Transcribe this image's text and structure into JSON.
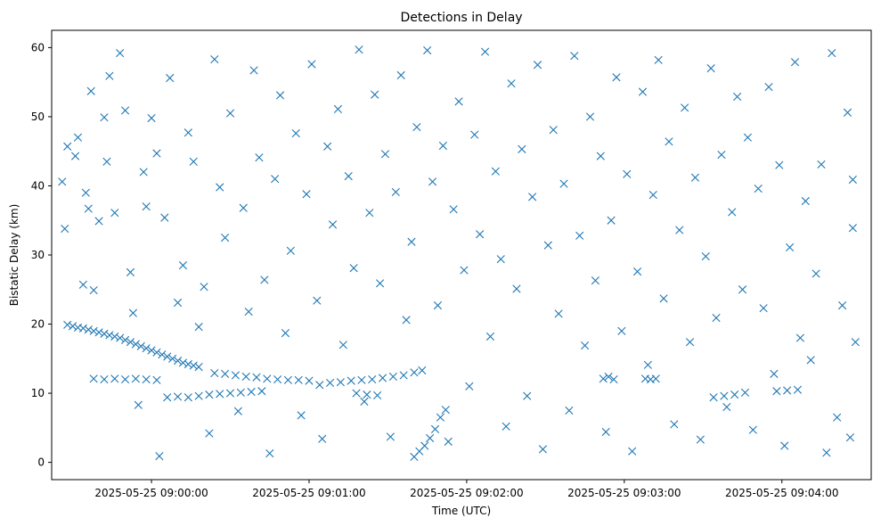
{
  "chart_data": {
    "type": "scatter",
    "title": "Detections in Delay",
    "xlabel": "Time (UTC)",
    "ylabel": "Bistatic Delay (km)",
    "ylim": [
      -2.5,
      62.5
    ],
    "xlim": [
      "2025-05-25 08:59:22",
      "2025-05-25 09:04:34"
    ],
    "x_ticks": [
      "2025-05-25 09:00:00",
      "2025-05-25 09:01:00",
      "2025-05-25 09:02:00",
      "2025-05-25 09:03:00",
      "2025-05-25 09:04:00"
    ],
    "y_ticks": [
      0,
      10,
      20,
      30,
      40,
      50,
      60
    ],
    "marker": "x",
    "color": "#1f77b4",
    "grid": false,
    "series": [
      {
        "values": [
          [
            "2025-05-25 08:59:28",
            19.9
          ],
          [
            "2025-05-25 08:59:30",
            19.7
          ],
          [
            "2025-05-25 08:59:32",
            19.5
          ],
          [
            "2025-05-25 08:59:34",
            19.4
          ],
          [
            "2025-05-25 08:59:36",
            19.2
          ],
          [
            "2025-05-25 08:59:38",
            19.0
          ],
          [
            "2025-05-25 08:59:40",
            18.8
          ],
          [
            "2025-05-25 08:59:42",
            18.6
          ],
          [
            "2025-05-25 08:59:44",
            18.4
          ],
          [
            "2025-05-25 08:59:46",
            18.2
          ],
          [
            "2025-05-25 08:59:48",
            18.0
          ],
          [
            "2025-05-25 08:59:50",
            17.7
          ],
          [
            "2025-05-25 08:59:52",
            17.4
          ],
          [
            "2025-05-25 08:59:54",
            17.1
          ],
          [
            "2025-05-25 08:59:56",
            16.8
          ],
          [
            "2025-05-25 08:59:58",
            16.5
          ],
          [
            "2025-05-25 09:00:00",
            16.2
          ],
          [
            "2025-05-25 09:00:02",
            15.9
          ],
          [
            "2025-05-25 09:00:04",
            15.6
          ],
          [
            "2025-05-25 09:00:06",
            15.3
          ],
          [
            "2025-05-25 09:00:08",
            15.0
          ],
          [
            "2025-05-25 09:00:10",
            14.7
          ],
          [
            "2025-05-25 09:00:12",
            14.4
          ],
          [
            "2025-05-25 09:00:14",
            14.2
          ],
          [
            "2025-05-25 09:00:16",
            14.0
          ],
          [
            "2025-05-25 09:00:18",
            13.8
          ],
          [
            "2025-05-25 08:59:38",
            12.1
          ],
          [
            "2025-05-25 08:59:42",
            12.0
          ],
          [
            "2025-05-25 08:59:46",
            12.1
          ],
          [
            "2025-05-25 08:59:50",
            12.0
          ],
          [
            "2025-05-25 08:59:54",
            12.1
          ],
          [
            "2025-05-25 08:59:58",
            12.0
          ],
          [
            "2025-05-25 09:00:02",
            11.9
          ],
          [
            "2025-05-25 09:00:06",
            9.4
          ],
          [
            "2025-05-25 09:00:10",
            9.5
          ],
          [
            "2025-05-25 09:00:14",
            9.4
          ],
          [
            "2025-05-25 09:00:18",
            9.6
          ],
          [
            "2025-05-25 09:00:22",
            9.8
          ],
          [
            "2025-05-25 09:00:26",
            9.9
          ],
          [
            "2025-05-25 09:00:30",
            10.0
          ],
          [
            "2025-05-25 09:00:34",
            10.1
          ],
          [
            "2025-05-25 09:00:38",
            10.2
          ],
          [
            "2025-05-25 09:00:42",
            10.3
          ],
          [
            "2025-05-25 09:00:24",
            12.9
          ],
          [
            "2025-05-25 09:00:28",
            12.8
          ],
          [
            "2025-05-25 09:00:32",
            12.6
          ],
          [
            "2025-05-25 09:00:36",
            12.4
          ],
          [
            "2025-05-25 09:00:40",
            12.3
          ],
          [
            "2025-05-25 09:00:44",
            12.1
          ],
          [
            "2025-05-25 09:00:48",
            12.0
          ],
          [
            "2025-05-25 09:00:52",
            11.9
          ],
          [
            "2025-05-25 09:00:56",
            11.9
          ],
          [
            "2025-05-25 09:01:00",
            11.8
          ],
          [
            "2025-05-25 09:01:04",
            11.2
          ],
          [
            "2025-05-25 09:01:08",
            11.5
          ],
          [
            "2025-05-25 09:01:12",
            11.6
          ],
          [
            "2025-05-25 09:01:16",
            11.8
          ],
          [
            "2025-05-25 09:01:20",
            11.9
          ],
          [
            "2025-05-25 09:01:24",
            12.0
          ],
          [
            "2025-05-25 09:01:28",
            12.2
          ],
          [
            "2025-05-25 09:01:32",
            12.4
          ],
          [
            "2025-05-25 09:01:36",
            12.6
          ],
          [
            "2025-05-25 09:01:40",
            13.0
          ],
          [
            "2025-05-25 09:01:18",
            10.0
          ],
          [
            "2025-05-25 09:01:22",
            9.8
          ],
          [
            "2025-05-25 09:01:26",
            9.7
          ],
          [
            "2025-05-25 09:01:40",
            0.8
          ],
          [
            "2025-05-25 09:01:42",
            1.6
          ],
          [
            "2025-05-25 09:01:44",
            2.4
          ],
          [
            "2025-05-25 09:01:46",
            3.5
          ],
          [
            "2025-05-25 09:01:48",
            4.8
          ],
          [
            "2025-05-25 09:01:50",
            6.5
          ],
          [
            "2025-05-25 09:01:52",
            7.6
          ],
          [
            "2025-05-25 09:02:52",
            12.1
          ],
          [
            "2025-05-25 09:02:54",
            12.4
          ],
          [
            "2025-05-25 09:02:56",
            12.0
          ],
          [
            "2025-05-25 09:03:08",
            12.1
          ],
          [
            "2025-05-25 09:03:10",
            12.0
          ],
          [
            "2025-05-25 09:03:12",
            12.1
          ],
          [
            "2025-05-25 09:03:34",
            9.4
          ],
          [
            "2025-05-25 09:03:38",
            9.6
          ],
          [
            "2025-05-25 09:03:42",
            9.8
          ],
          [
            "2025-05-25 09:03:46",
            10.1
          ],
          [
            "2025-05-25 09:03:58",
            10.3
          ],
          [
            "2025-05-25 09:04:02",
            10.4
          ],
          [
            "2025-05-25 09:04:06",
            10.5
          ],
          [
            "2025-05-25 08:59:26",
            40.6
          ],
          [
            "2025-05-25 08:59:27",
            33.8
          ],
          [
            "2025-05-25 08:59:28",
            45.7
          ],
          [
            "2025-05-25 08:59:31",
            44.3
          ],
          [
            "2025-05-25 08:59:32",
            47.0
          ],
          [
            "2025-05-25 08:59:34",
            25.7
          ],
          [
            "2025-05-25 08:59:35",
            39.0
          ],
          [
            "2025-05-25 08:59:36",
            36.7
          ],
          [
            "2025-05-25 08:59:37",
            53.7
          ],
          [
            "2025-05-25 08:59:38",
            24.9
          ],
          [
            "2025-05-25 08:59:40",
            34.9
          ],
          [
            "2025-05-25 08:59:42",
            49.9
          ],
          [
            "2025-05-25 08:59:43",
            43.5
          ],
          [
            "2025-05-25 08:59:44",
            55.9
          ],
          [
            "2025-05-25 08:59:46",
            36.1
          ],
          [
            "2025-05-25 08:59:48",
            59.2
          ],
          [
            "2025-05-25 08:59:50",
            50.9
          ],
          [
            "2025-05-25 08:59:52",
            27.5
          ],
          [
            "2025-05-25 08:59:53",
            21.6
          ],
          [
            "2025-05-25 08:59:55",
            8.3
          ],
          [
            "2025-05-25 08:59:57",
            42.0
          ],
          [
            "2025-05-25 08:59:58",
            37.0
          ],
          [
            "2025-05-25 09:00:00",
            49.8
          ],
          [
            "2025-05-25 09:00:02",
            44.7
          ],
          [
            "2025-05-25 09:00:03",
            0.9
          ],
          [
            "2025-05-25 09:00:05",
            35.4
          ],
          [
            "2025-05-25 09:00:07",
            55.6
          ],
          [
            "2025-05-25 09:00:10",
            23.1
          ],
          [
            "2025-05-25 09:00:12",
            28.5
          ],
          [
            "2025-05-25 09:00:14",
            47.7
          ],
          [
            "2025-05-25 09:00:16",
            43.5
          ],
          [
            "2025-05-25 09:00:18",
            19.6
          ],
          [
            "2025-05-25 09:00:20",
            25.4
          ],
          [
            "2025-05-25 09:00:22",
            4.2
          ],
          [
            "2025-05-25 09:00:24",
            58.3
          ],
          [
            "2025-05-25 09:00:26",
            39.8
          ],
          [
            "2025-05-25 09:00:28",
            32.5
          ],
          [
            "2025-05-25 09:00:30",
            50.5
          ],
          [
            "2025-05-25 09:00:33",
            7.4
          ],
          [
            "2025-05-25 09:00:35",
            36.8
          ],
          [
            "2025-05-25 09:00:37",
            21.8
          ],
          [
            "2025-05-25 09:00:39",
            56.7
          ],
          [
            "2025-05-25 09:00:41",
            44.1
          ],
          [
            "2025-05-25 09:00:43",
            26.4
          ],
          [
            "2025-05-25 09:00:45",
            1.3
          ],
          [
            "2025-05-25 09:00:47",
            41.0
          ],
          [
            "2025-05-25 09:00:49",
            53.1
          ],
          [
            "2025-05-25 09:00:51",
            18.7
          ],
          [
            "2025-05-25 09:00:53",
            30.6
          ],
          [
            "2025-05-25 09:00:55",
            47.6
          ],
          [
            "2025-05-25 09:00:57",
            6.8
          ],
          [
            "2025-05-25 09:00:59",
            38.8
          ],
          [
            "2025-05-25 09:01:01",
            57.6
          ],
          [
            "2025-05-25 09:01:03",
            23.4
          ],
          [
            "2025-05-25 09:01:05",
            3.4
          ],
          [
            "2025-05-25 09:01:07",
            45.7
          ],
          [
            "2025-05-25 09:01:09",
            34.4
          ],
          [
            "2025-05-25 09:01:11",
            51.1
          ],
          [
            "2025-05-25 09:01:13",
            17.0
          ],
          [
            "2025-05-25 09:01:15",
            41.4
          ],
          [
            "2025-05-25 09:01:17",
            28.1
          ],
          [
            "2025-05-25 09:01:19",
            59.7
          ],
          [
            "2025-05-25 09:01:21",
            8.8
          ],
          [
            "2025-05-25 09:01:23",
            36.1
          ],
          [
            "2025-05-25 09:01:25",
            53.2
          ],
          [
            "2025-05-25 09:01:27",
            25.9
          ],
          [
            "2025-05-25 09:01:29",
            44.6
          ],
          [
            "2025-05-25 09:01:31",
            3.7
          ],
          [
            "2025-05-25 09:01:33",
            39.1
          ],
          [
            "2025-05-25 09:01:35",
            56.0
          ],
          [
            "2025-05-25 09:01:37",
            20.6
          ],
          [
            "2025-05-25 09:01:39",
            31.9
          ],
          [
            "2025-05-25 09:01:41",
            48.5
          ],
          [
            "2025-05-25 09:01:43",
            13.3
          ],
          [
            "2025-05-25 09:01:45",
            59.6
          ],
          [
            "2025-05-25 09:01:47",
            40.6
          ],
          [
            "2025-05-25 09:01:49",
            22.7
          ],
          [
            "2025-05-25 09:01:51",
            45.8
          ],
          [
            "2025-05-25 09:01:53",
            3.0
          ],
          [
            "2025-05-25 09:01:55",
            36.6
          ],
          [
            "2025-05-25 09:01:57",
            52.2
          ],
          [
            "2025-05-25 09:01:59",
            27.8
          ],
          [
            "2025-05-25 09:02:01",
            11.0
          ],
          [
            "2025-05-25 09:02:03",
            47.4
          ],
          [
            "2025-05-25 09:02:05",
            33.0
          ],
          [
            "2025-05-25 09:02:07",
            59.4
          ],
          [
            "2025-05-25 09:02:09",
            18.2
          ],
          [
            "2025-05-25 09:02:11",
            42.1
          ],
          [
            "2025-05-25 09:02:13",
            29.4
          ],
          [
            "2025-05-25 09:02:15",
            5.2
          ],
          [
            "2025-05-25 09:02:17",
            54.8
          ],
          [
            "2025-05-25 09:02:19",
            25.1
          ],
          [
            "2025-05-25 09:02:21",
            45.3
          ],
          [
            "2025-05-25 09:02:23",
            9.6
          ],
          [
            "2025-05-25 09:02:25",
            38.4
          ],
          [
            "2025-05-25 09:02:27",
            57.5
          ],
          [
            "2025-05-25 09:02:29",
            1.9
          ],
          [
            "2025-05-25 09:02:31",
            31.4
          ],
          [
            "2025-05-25 09:02:33",
            48.1
          ],
          [
            "2025-05-25 09:02:35",
            21.5
          ],
          [
            "2025-05-25 09:02:37",
            40.3
          ],
          [
            "2025-05-25 09:02:39",
            7.5
          ],
          [
            "2025-05-25 09:02:41",
            58.8
          ],
          [
            "2025-05-25 09:02:43",
            32.8
          ],
          [
            "2025-05-25 09:02:45",
            16.9
          ],
          [
            "2025-05-25 09:02:47",
            50.0
          ],
          [
            "2025-05-25 09:02:49",
            26.3
          ],
          [
            "2025-05-25 09:02:51",
            44.3
          ],
          [
            "2025-05-25 09:02:53",
            4.4
          ],
          [
            "2025-05-25 09:02:55",
            35.0
          ],
          [
            "2025-05-25 09:02:57",
            55.7
          ],
          [
            "2025-05-25 09:02:59",
            19.0
          ],
          [
            "2025-05-25 09:03:01",
            41.7
          ],
          [
            "2025-05-25 09:03:03",
            1.6
          ],
          [
            "2025-05-25 09:03:05",
            27.6
          ],
          [
            "2025-05-25 09:03:07",
            53.6
          ],
          [
            "2025-05-25 09:03:09",
            14.1
          ],
          [
            "2025-05-25 09:03:11",
            38.7
          ],
          [
            "2025-05-25 09:03:13",
            58.2
          ],
          [
            "2025-05-25 09:03:15",
            23.7
          ],
          [
            "2025-05-25 09:03:17",
            46.4
          ],
          [
            "2025-05-25 09:03:19",
            5.5
          ],
          [
            "2025-05-25 09:03:21",
            33.6
          ],
          [
            "2025-05-25 09:03:23",
            51.3
          ],
          [
            "2025-05-25 09:03:25",
            17.4
          ],
          [
            "2025-05-25 09:03:27",
            41.2
          ],
          [
            "2025-05-25 09:03:29",
            3.3
          ],
          [
            "2025-05-25 09:03:31",
            29.8
          ],
          [
            "2025-05-25 09:03:33",
            57.0
          ],
          [
            "2025-05-25 09:03:35",
            20.9
          ],
          [
            "2025-05-25 09:03:37",
            44.5
          ],
          [
            "2025-05-25 09:03:39",
            8.0
          ],
          [
            "2025-05-25 09:03:41",
            36.2
          ],
          [
            "2025-05-25 09:03:43",
            52.9
          ],
          [
            "2025-05-25 09:03:45",
            25.0
          ],
          [
            "2025-05-25 09:03:47",
            47.0
          ],
          [
            "2025-05-25 09:03:49",
            4.7
          ],
          [
            "2025-05-25 09:03:51",
            39.6
          ],
          [
            "2025-05-25 09:03:53",
            22.3
          ],
          [
            "2025-05-25 09:03:55",
            54.3
          ],
          [
            "2025-05-25 09:03:57",
            12.8
          ],
          [
            "2025-05-25 09:03:59",
            43.0
          ],
          [
            "2025-05-25 09:04:01",
            2.4
          ],
          [
            "2025-05-25 09:04:03",
            31.1
          ],
          [
            "2025-05-25 09:04:05",
            57.9
          ],
          [
            "2025-05-25 09:04:07",
            18.0
          ],
          [
            "2025-05-25 09:04:09",
            37.8
          ],
          [
            "2025-05-25 09:04:11",
            14.8
          ],
          [
            "2025-05-25 09:04:13",
            27.3
          ],
          [
            "2025-05-25 09:04:15",
            43.1
          ],
          [
            "2025-05-25 09:04:17",
            1.4
          ],
          [
            "2025-05-25 09:04:19",
            59.2
          ],
          [
            "2025-05-25 09:04:21",
            6.5
          ],
          [
            "2025-05-25 09:04:23",
            22.7
          ],
          [
            "2025-05-25 09:04:25",
            50.6
          ],
          [
            "2025-05-25 09:04:26",
            3.6
          ],
          [
            "2025-05-25 09:04:27",
            40.9
          ],
          [
            "2025-05-25 09:04:27",
            33.9
          ],
          [
            "2025-05-25 09:04:28",
            17.4
          ]
        ]
      }
    ]
  }
}
